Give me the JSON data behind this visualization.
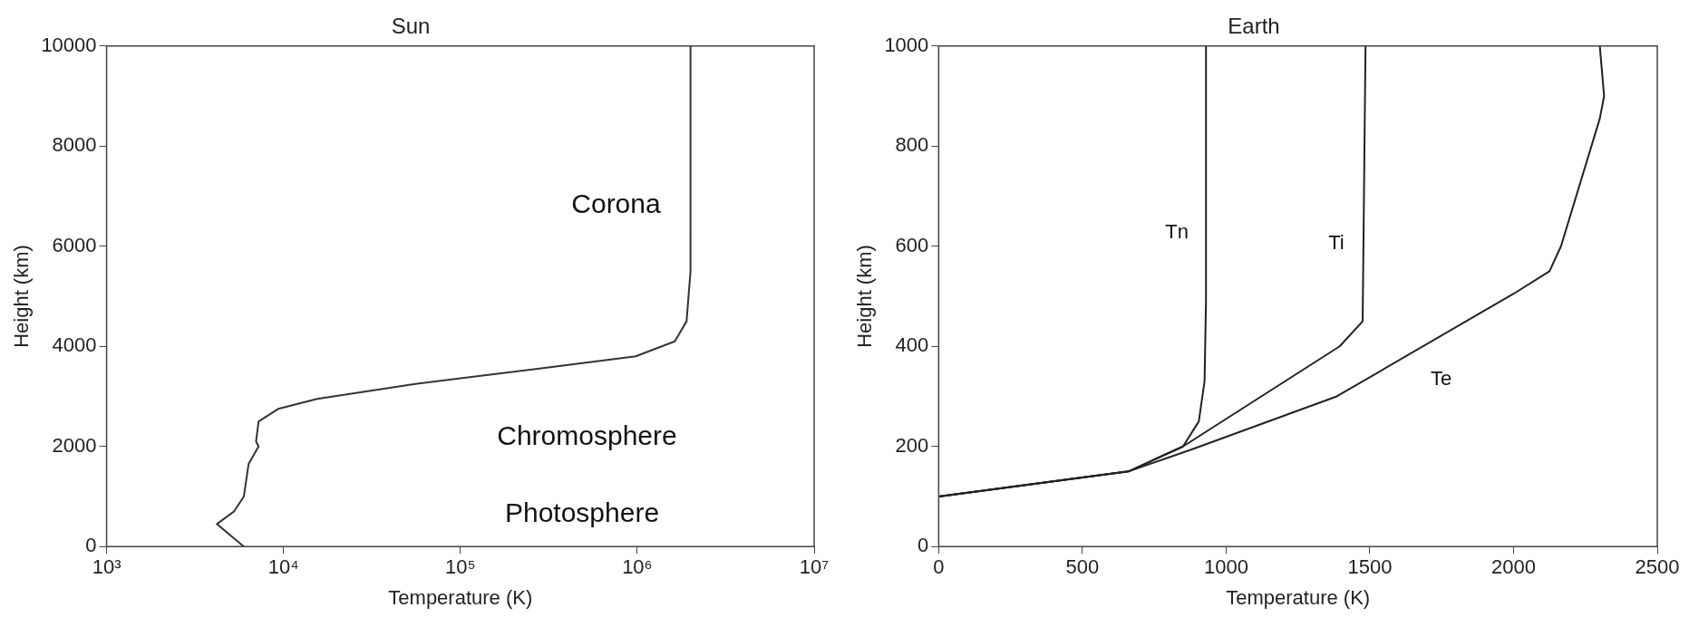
{
  "chart_data": [
    {
      "type": "line",
      "title": "Sun",
      "xlabel": "Temperature (K)",
      "ylabel": "Height (km)",
      "log": "x",
      "grid": false,
      "legend": false,
      "marker": "none",
      "line_style": "solid",
      "xlim": [
        1000,
        10000000
      ],
      "xticks": [
        {
          "value": 1000,
          "label": "10³"
        },
        {
          "value": 10000,
          "label": "10⁴"
        },
        {
          "value": 100000,
          "label": "10⁵"
        },
        {
          "value": 1000000,
          "label": "10⁶"
        },
        {
          "value": 10000000,
          "label": "10⁷"
        }
      ],
      "ylim": [
        0,
        10000
      ],
      "yticks": [
        0,
        2000,
        4000,
        6000,
        8000,
        10000
      ],
      "series": [
        {
          "color": "#333333",
          "x": [
            5970,
            4200,
            5250,
            5970,
            6350,
            7230,
            7000,
            7230,
            9330,
            15500,
            55600,
            274000,
            980000,
            1630000,
            1900000,
            2000000,
            2000000
          ],
          "values": [
            0,
            450,
            700,
            1000,
            1650,
            2000,
            2100,
            2500,
            2750,
            2950,
            3250,
            3550,
            3800,
            4100,
            4500,
            5500,
            10000
          ]
        }
      ],
      "annotations": [
        "Corona",
        "Chromosphere",
        "Photosphere"
      ]
    },
    {
      "type": "line",
      "title": "Earth",
      "xlabel": "Temperature (K)",
      "ylabel": "Height (km)",
      "grid": false,
      "legend": false,
      "marker": "none",
      "line_style": "solid",
      "xlim": [
        0,
        2500
      ],
      "xticks": [
        0,
        500,
        1000,
        1500,
        2000,
        2500
      ],
      "ylim": [
        0,
        1000
      ],
      "yticks": [
        0,
        200,
        400,
        600,
        800,
        1000
      ],
      "series": [
        {
          "name": "Tn",
          "color": "#222222",
          "x": [
            0,
            660,
            850,
            905,
            925,
            930,
            930
          ],
          "values": [
            100,
            150,
            200,
            250,
            330,
            490,
            1000
          ]
        },
        {
          "name": "Ti",
          "color": "#222222",
          "x": [
            0,
            660,
            850,
            1395,
            1475,
            1485
          ],
          "values": [
            100,
            150,
            200,
            400,
            450,
            1000
          ]
        },
        {
          "name": "Te",
          "color": "#222222",
          "x": [
            0,
            660,
            885,
            1385,
            2000,
            2125,
            2165,
            2300,
            2315,
            2300
          ],
          "values": [
            100,
            150,
            195,
            300,
            505,
            550,
            600,
            855,
            900,
            1000
          ]
        }
      ]
    }
  ]
}
